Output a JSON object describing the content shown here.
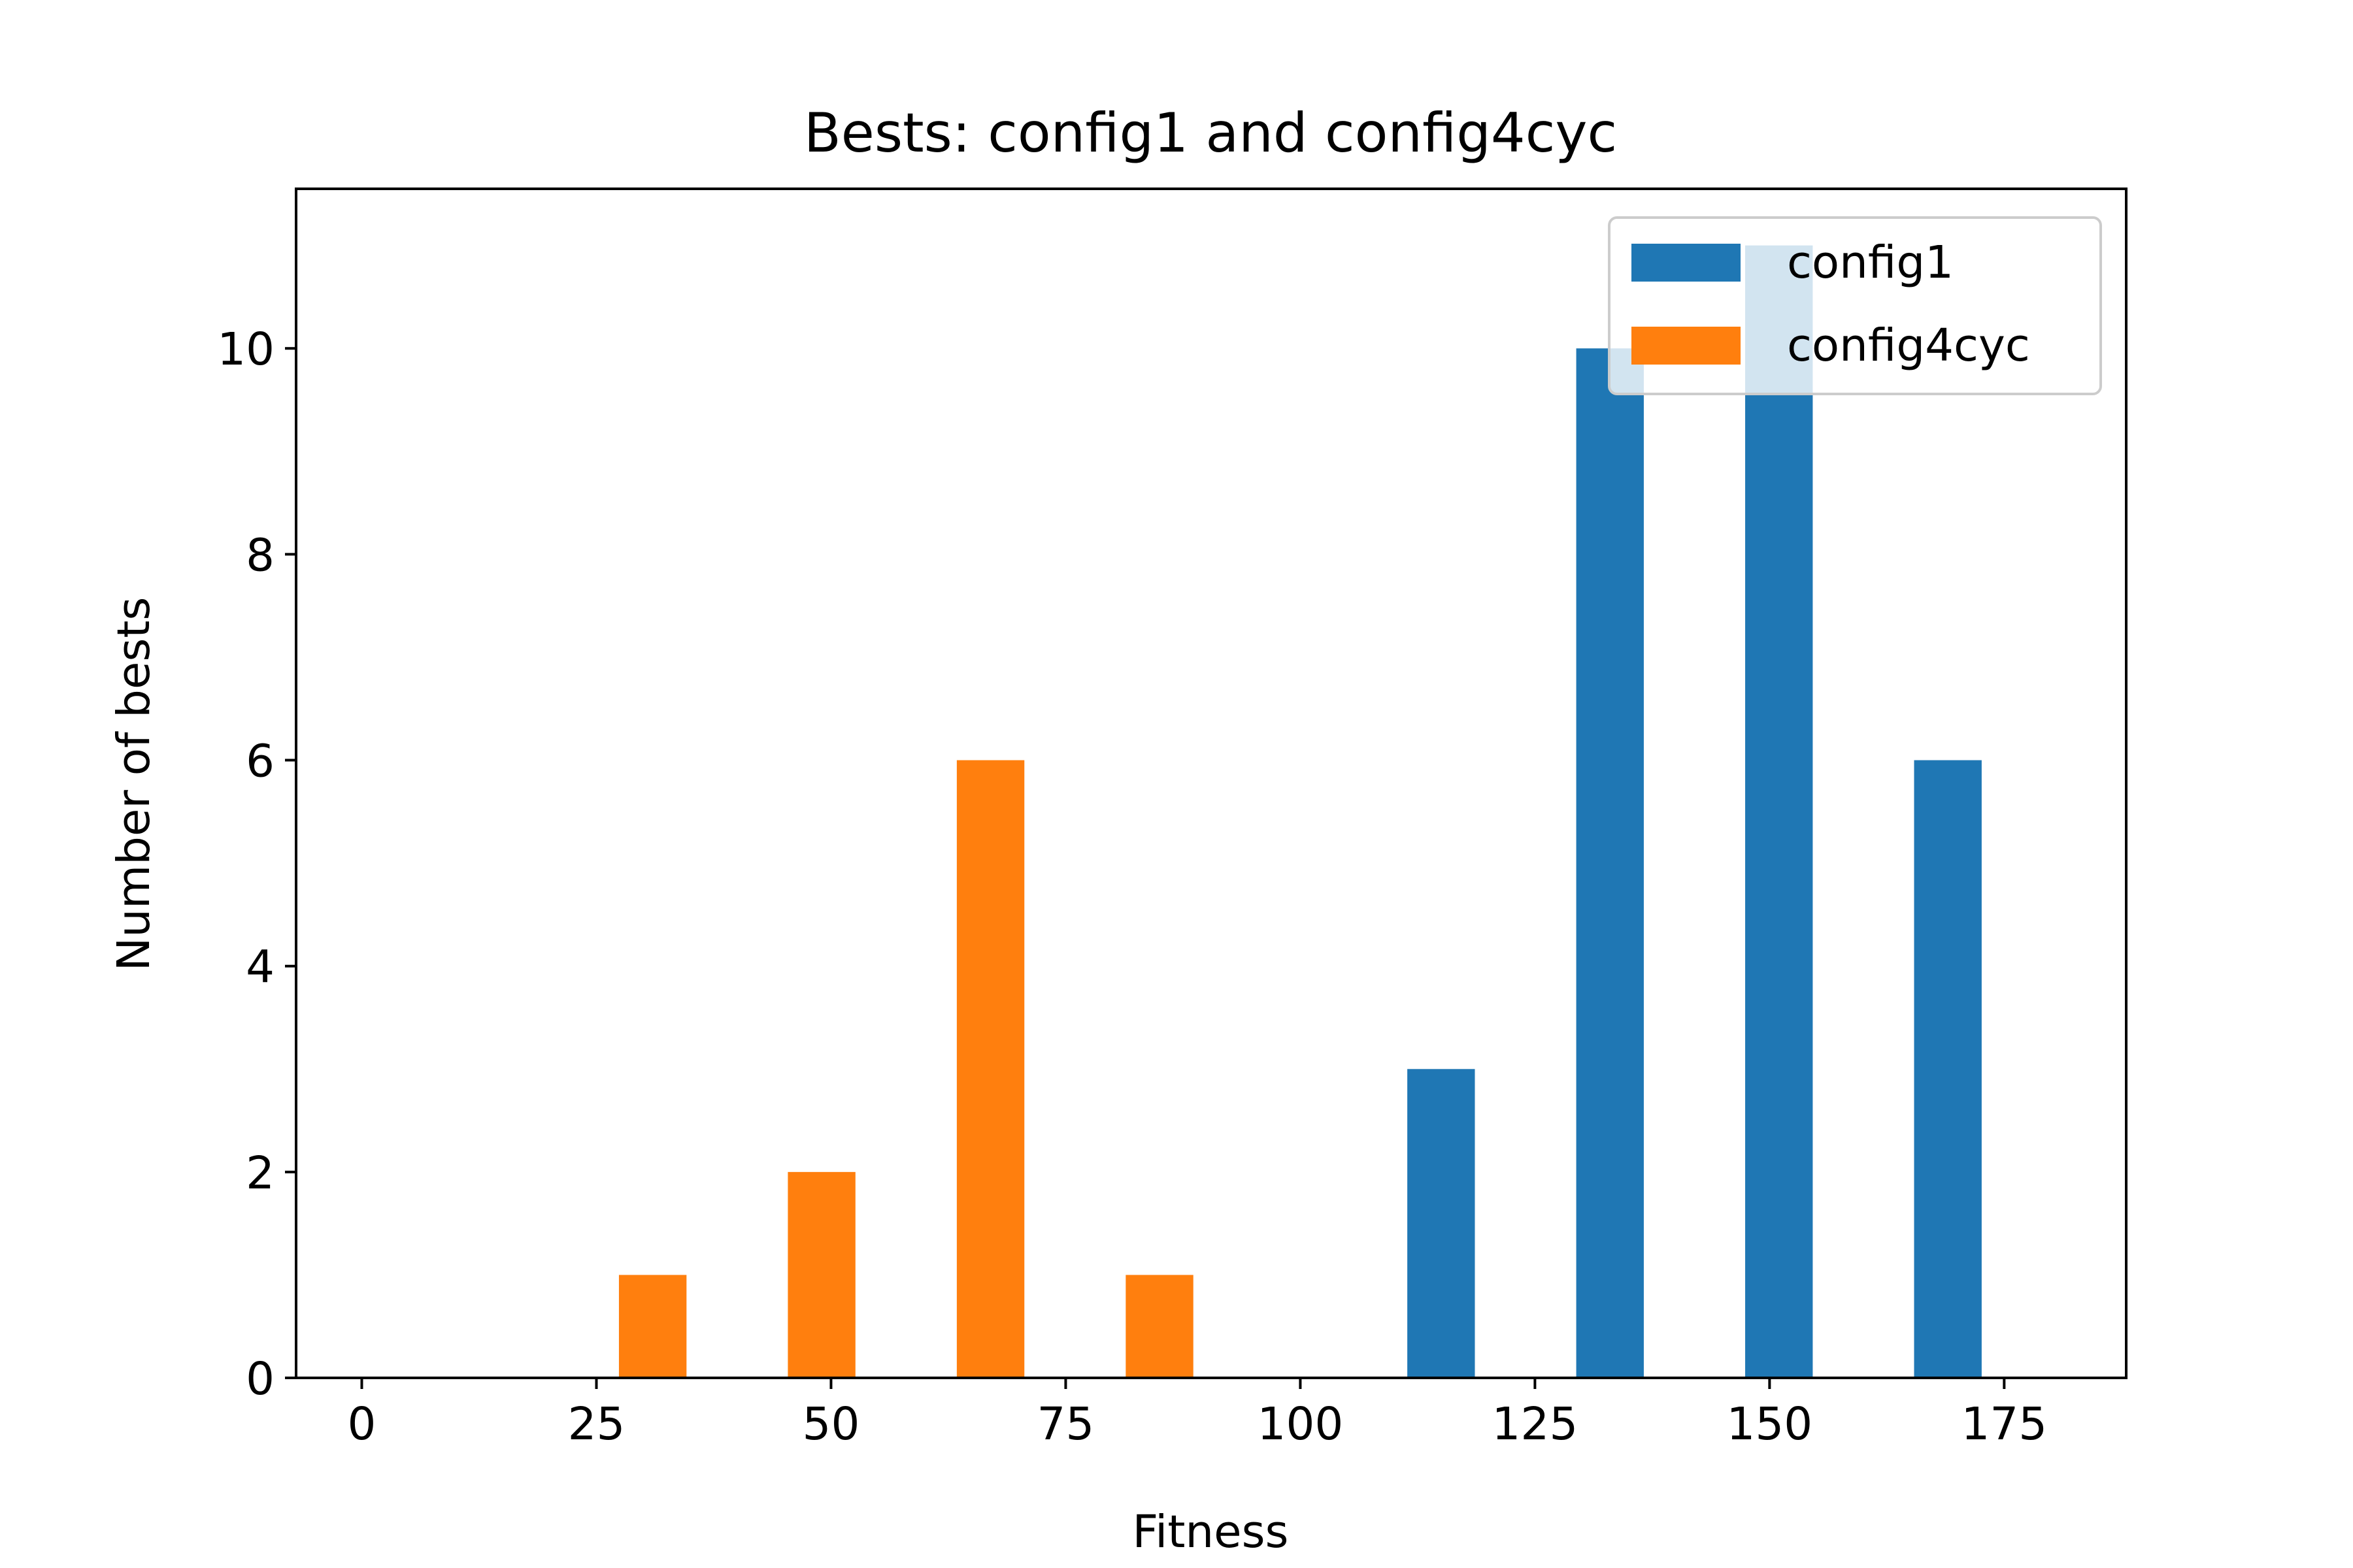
{
  "chart_data": {
    "type": "bar",
    "title": "Bests: config1 and config4cyc",
    "xlabel": "Fitness",
    "ylabel": "Number of bests",
    "xlim": [
      -7,
      188
    ],
    "ylim": [
      0,
      11.55
    ],
    "xticks": [
      0,
      25,
      50,
      75,
      100,
      125,
      150,
      175
    ],
    "yticks": [
      0,
      2,
      4,
      6,
      8,
      10
    ],
    "bar_width": 7.2,
    "grid": false,
    "legend_position": "top-right",
    "series": [
      {
        "name": "config1",
        "color": "#1f77b4",
        "x": [
          115,
          133,
          151,
          169
        ],
        "values": [
          3,
          10,
          11,
          6
        ]
      },
      {
        "name": "config4cyc",
        "color": "#ff7f0e",
        "x": [
          31,
          49,
          67,
          85
        ],
        "values": [
          1,
          2,
          6,
          1
        ]
      }
    ]
  }
}
